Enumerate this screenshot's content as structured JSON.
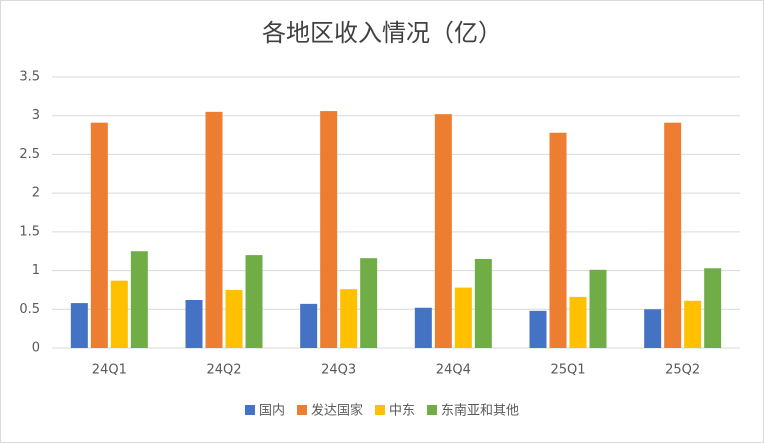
{
  "chart_data": {
    "type": "bar",
    "title": "各地区收入情况（亿）",
    "categories": [
      "24Q1",
      "24Q2",
      "24Q3",
      "24Q4",
      "25Q1",
      "25Q2"
    ],
    "series": [
      {
        "name": "国内",
        "color": "#4472c4",
        "values": [
          0.58,
          0.62,
          0.57,
          0.52,
          0.48,
          0.5
        ]
      },
      {
        "name": "发达国家",
        "color": "#ed7d31",
        "values": [
          2.91,
          3.05,
          3.06,
          3.02,
          2.78,
          2.91
        ]
      },
      {
        "name": "中东",
        "color": "#ffc000",
        "values": [
          0.87,
          0.75,
          0.76,
          0.78,
          0.66,
          0.61
        ]
      },
      {
        "name": "东南亚和其他",
        "color": "#70ad47",
        "values": [
          1.25,
          1.2,
          1.16,
          1.15,
          1.01,
          1.03
        ]
      }
    ],
    "ylim": [
      0,
      3.5
    ],
    "yticks": [
      0,
      0.5,
      1,
      1.5,
      2,
      2.5,
      3,
      3.5
    ],
    "grid": true,
    "legend": "bottom"
  }
}
